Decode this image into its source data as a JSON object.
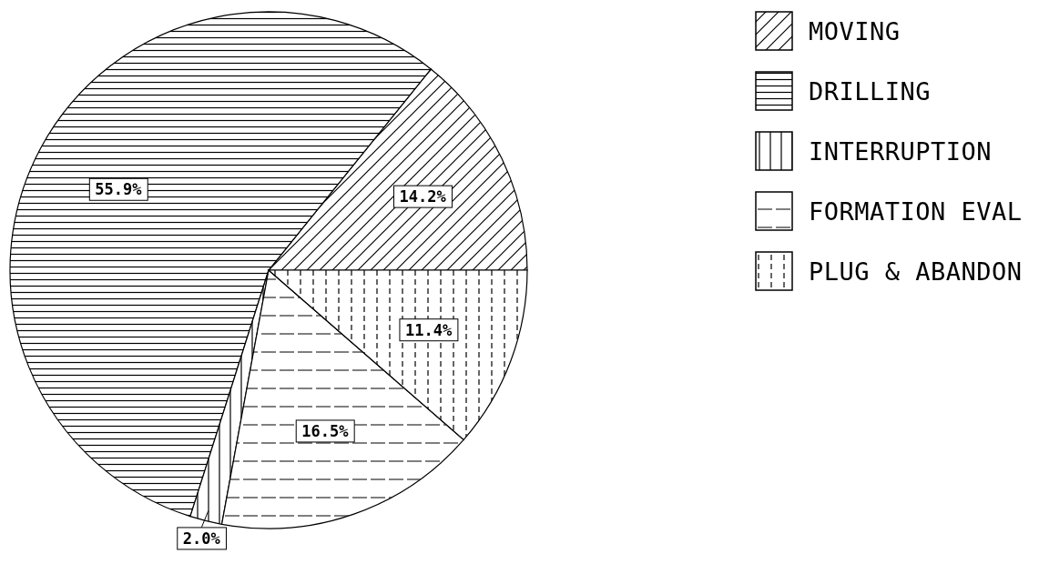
{
  "chart_data": {
    "type": "pie",
    "categories": [
      "MOVING",
      "DRILLING",
      "INTERRUPTION",
      "FORMATION EVAL",
      "PLUG & ABANDON"
    ],
    "values": [
      14.2,
      55.9,
      2.0,
      16.5,
      11.4
    ],
    "colors": [
      "#000000",
      "#000000",
      "#000000",
      "#000000",
      "#000000"
    ],
    "value_labels": [
      "14.2%",
      "55.9%",
      "2.0%",
      "16.5%",
      "11.4%"
    ],
    "legend": "top right"
  }
}
